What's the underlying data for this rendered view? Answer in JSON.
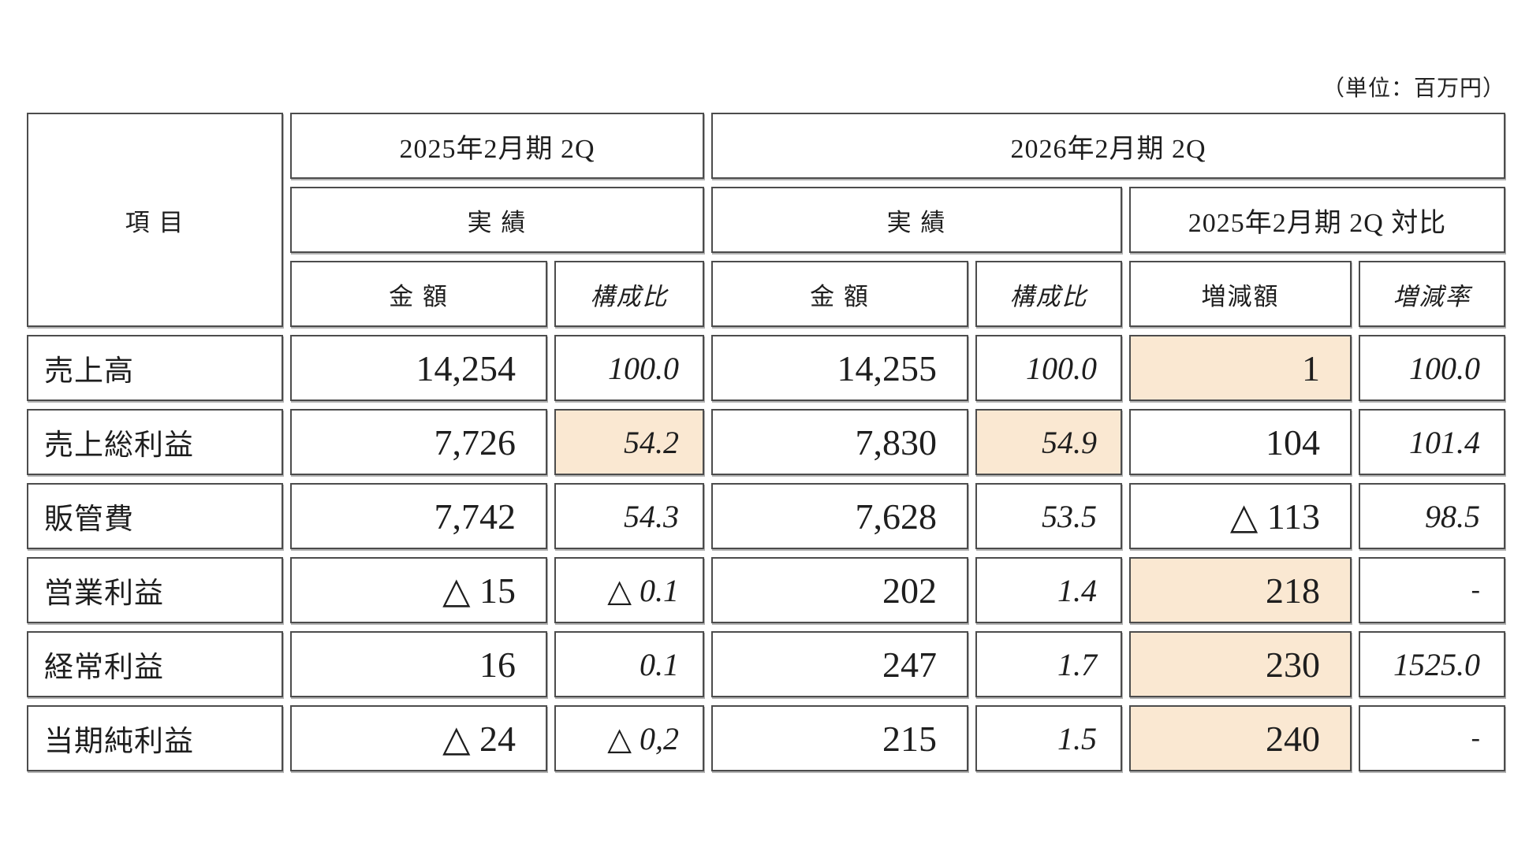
{
  "unit_label": "（単位：百万円）",
  "colors": {
    "highlight": "#FAE8D2",
    "border": "#4c4c4c",
    "text": "#1e1e1e"
  },
  "table": {
    "item_header": "項 目",
    "period_2025_header": "2025年2月期 2Q",
    "period_2026_header": "2026年2月期 2Q",
    "actual_2025_label": "実 績",
    "actual_2026_label": "実 績",
    "comparison_label": "2025年2月期 2Q 対比",
    "col_amount_2025": "金 額",
    "col_ratio_2025": "構成比",
    "col_amount_2026": "金 額",
    "col_ratio_2026": "構成比",
    "col_change_amount": "増減額",
    "col_change_rate": "増減率",
    "rows": [
      {
        "item": "売上高",
        "amount_2025": "14,254",
        "ratio_2025": "100.0",
        "amount_2026": "14,255",
        "ratio_2026": "100.0",
        "change_amount": "1",
        "change_rate": "100.0",
        "highlight_cells": [
          "change_amount"
        ]
      },
      {
        "item": "売上総利益",
        "amount_2025": "7,726",
        "ratio_2025": "54.2",
        "amount_2026": "7,830",
        "ratio_2026": "54.9",
        "change_amount": "104",
        "change_rate": "101.4",
        "highlight_cells": [
          "ratio_2025",
          "ratio_2026"
        ]
      },
      {
        "item": "販管費",
        "amount_2025": "7,742",
        "ratio_2025": "54.3",
        "amount_2026": "7,628",
        "ratio_2026": "53.5",
        "change_amount": "△ 113",
        "change_rate": "98.5",
        "highlight_cells": []
      },
      {
        "item": "営業利益",
        "amount_2025": "△ 15",
        "ratio_2025": "△ 0.1",
        "amount_2026": "202",
        "ratio_2026": "1.4",
        "change_amount": "218",
        "change_rate": "-",
        "highlight_cells": [
          "change_amount"
        ]
      },
      {
        "item": "経常利益",
        "amount_2025": "16",
        "ratio_2025": "0.1",
        "amount_2026": "247",
        "ratio_2026": "1.7",
        "change_amount": "230",
        "change_rate": "1525.0",
        "highlight_cells": [
          "change_amount"
        ]
      },
      {
        "item": "当期純利益",
        "amount_2025": "△ 24",
        "ratio_2025": "△ 0,2",
        "amount_2026": "215",
        "ratio_2026": "1.5",
        "change_amount": "240",
        "change_rate": "-",
        "highlight_cells": [
          "change_amount"
        ]
      }
    ]
  }
}
